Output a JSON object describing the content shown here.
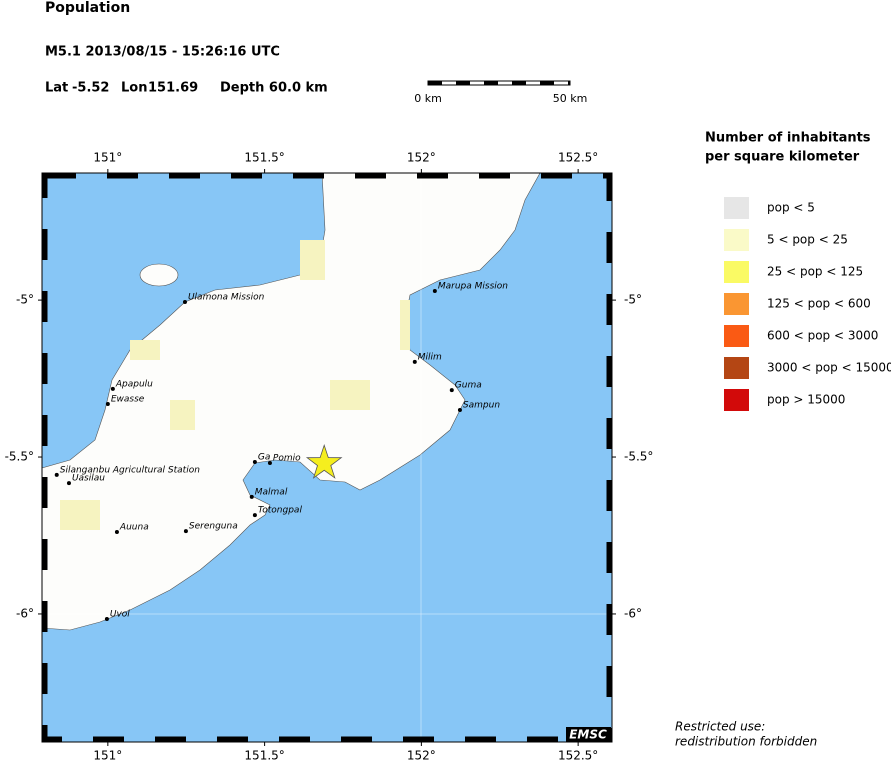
{
  "header": {
    "title": "Population",
    "event": "M5.1  2013/08/15 - 15:26:16 UTC",
    "lat_label": "Lat",
    "lat": -5.52,
    "lon_label": "Lon",
    "lon": 151.69,
    "depth": "Depth  60.0 km"
  },
  "scale_bar": {
    "start": "0 km",
    "end": "50 km"
  },
  "map": {
    "lon_range": [
      150.79,
      152.608
    ],
    "lat_range": [
      -6.408,
      -4.595
    ],
    "lon_ticks": [
      {
        "value": 151,
        "label": "151°"
      },
      {
        "value": 151.5,
        "label": "151.5°"
      },
      {
        "value": 152,
        "label": "152°"
      },
      {
        "value": 152.5,
        "label": "152.5°"
      }
    ],
    "lat_ticks": [
      {
        "value": -5,
        "label": "-5°"
      },
      {
        "value": -5.5,
        "label": "-5.5°"
      },
      {
        "value": -6,
        "label": "-6°"
      }
    ],
    "places": [
      {
        "name": "Ulamona Mission",
        "lon": 151.246,
        "lat": -5.006
      },
      {
        "name": "Marupa Mission",
        "lon": 152.043,
        "lat": -4.971
      },
      {
        "name": "Milim",
        "lon": 151.979,
        "lat": -5.197
      },
      {
        "name": "Guma",
        "lon": 152.097,
        "lat": -5.287
      },
      {
        "name": "Sampun",
        "lon": 152.123,
        "lat": -5.35
      },
      {
        "name": "Apapulu",
        "lon": 151.016,
        "lat": -5.283
      },
      {
        "name": "Ewasse",
        "lon": 151.0,
        "lat": -5.331
      },
      {
        "name": "Ga",
        "lon": 151.469,
        "lat": -5.516
      },
      {
        "name": "Pomio",
        "lon": 151.517,
        "lat": -5.519
      },
      {
        "name": "Silanganbu Agricultural Station",
        "lon": 150.837,
        "lat": -5.557
      },
      {
        "name": "Uasilau",
        "lon": 150.876,
        "lat": -5.583
      },
      {
        "name": "Malmal",
        "lon": 151.459,
        "lat": -5.627
      },
      {
        "name": "Totongpal",
        "lon": 151.469,
        "lat": -5.685
      },
      {
        "name": "Auuna",
        "lon": 151.029,
        "lat": -5.739
      },
      {
        "name": "Serenguna",
        "lon": 151.249,
        "lat": -5.736
      },
      {
        "name": "Uvol",
        "lon": 150.997,
        "lat": -6.016
      }
    ],
    "credit": "EMSC"
  },
  "legend": {
    "title_lines": [
      "Number of inhabitants",
      "per square kilometer"
    ],
    "items": [
      {
        "label": "pop < 5",
        "color": "#e6e6e6"
      },
      {
        "label": "5 < pop < 25",
        "color": "#fafac8"
      },
      {
        "label": "25 < pop < 125",
        "color": "#fafa64"
      },
      {
        "label": "125 < pop < 600",
        "color": "#fa9632"
      },
      {
        "label": "600 < pop < 3000",
        "color": "#fa5a14"
      },
      {
        "label": "3000 < pop < 15000",
        "color": "#b44614"
      },
      {
        "label": "pop > 15000",
        "color": "#d20a0a"
      }
    ]
  },
  "notice": [
    "Restricted use:",
    "redistribution forbidden"
  ]
}
